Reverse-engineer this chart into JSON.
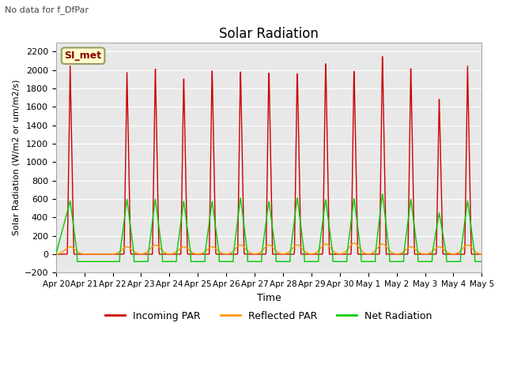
{
  "title": "Solar Radiation",
  "subtitle": "No data for f_DfPar",
  "ylabel": "Solar Radiation (W/m2 or um/m2/s)",
  "xlabel": "Time",
  "legend_label": "SI_met",
  "ylim": [
    -200,
    2300
  ],
  "yticks": [
    -200,
    0,
    200,
    400,
    600,
    800,
    1000,
    1200,
    1400,
    1600,
    1800,
    2000,
    2200
  ],
  "x_tick_labels": [
    "Apr 20",
    "Apr 21",
    "Apr 22",
    "Apr 23",
    "Apr 24",
    "Apr 25",
    "Apr 26",
    "Apr 27",
    "Apr 28",
    "Apr 29",
    "Apr 30",
    "May 1",
    "May 2",
    "May 3",
    "May 4",
    "May 5"
  ],
  "bg_color": "#e8e8e8",
  "line_colors": {
    "incoming": "#cc0000",
    "reflected": "#ff9900",
    "net": "#00cc00"
  },
  "legend_entries": [
    "Incoming PAR",
    "Reflected PAR",
    "Net Radiation"
  ],
  "incoming_peaks": [
    2050,
    0,
    2000,
    2050,
    1950,
    2050,
    2050,
    2050,
    2050,
    2150,
    2050,
    2200,
    2050,
    1700,
    2050,
    0
  ],
  "reflected_peaks": [
    80,
    0,
    80,
    100,
    80,
    80,
    100,
    100,
    100,
    110,
    120,
    110,
    80,
    80,
    100,
    0
  ],
  "net_peaks": [
    580,
    0,
    600,
    600,
    580,
    580,
    620,
    580,
    620,
    600,
    610,
    660,
    600,
    450,
    580,
    0
  ],
  "night_net": -80,
  "pts_per_day": 96
}
